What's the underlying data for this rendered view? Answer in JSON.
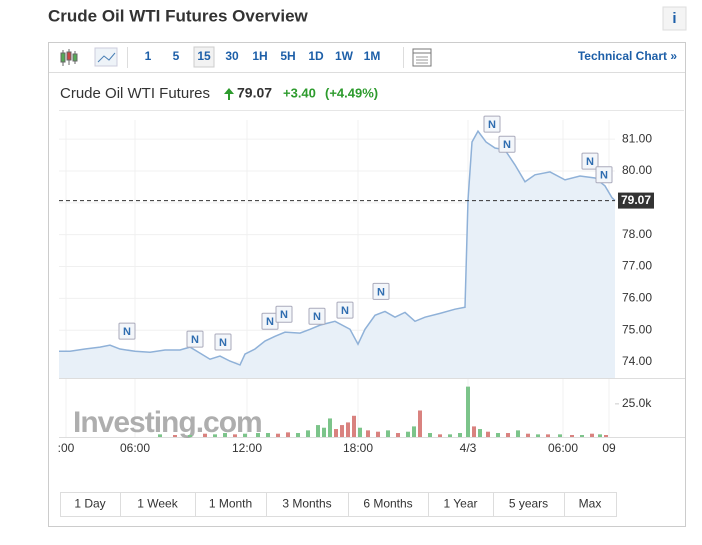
{
  "header": {
    "title": "Crude Oil WTI Futures Overview",
    "info": "i"
  },
  "toolbar": {
    "intervals": [
      "1",
      "5",
      "15",
      "30",
      "1H",
      "5H",
      "1D",
      "1W",
      "1M"
    ],
    "selected": "15",
    "technical_chart": "Technical Chart »"
  },
  "quote": {
    "name": "Crude Oil WTI Futures",
    "price": "79.07",
    "change": "+3.40",
    "change_pct": "(+4.49%)"
  },
  "chart_data": {
    "type": "area",
    "watermark": "Investing.com",
    "xlim": [
      0,
      556
    ],
    "xticks": [
      {
        "value": 7,
        "label": ":00"
      },
      {
        "value": 76,
        "label": "06:00"
      },
      {
        "value": 188,
        "label": "12:00"
      },
      {
        "value": 299,
        "label": "18:00"
      },
      {
        "value": 409,
        "label": "4/3"
      },
      {
        "value": 504,
        "label": "06:00"
      },
      {
        "value": 550,
        "label": "09"
      }
    ],
    "ylim": [
      73.5,
      81.6
    ],
    "yticks": [
      {
        "value": 74,
        "label": "74.00"
      },
      {
        "value": 75,
        "label": "75.00"
      },
      {
        "value": 76,
        "label": "76.00"
      },
      {
        "value": 77,
        "label": "77.00"
      },
      {
        "value": 78,
        "label": "78.00"
      },
      {
        "value": 79,
        "label": "79.00"
      },
      {
        "value": 80,
        "label": "80.00"
      },
      {
        "value": 81,
        "label": "81.00"
      }
    ],
    "last": 79.07,
    "price": {
      "color": "#8fb1d8",
      "fill": "#e8f0f8",
      "x": [
        0,
        11,
        26,
        41,
        51,
        61,
        76,
        91,
        106,
        121,
        131,
        141,
        151,
        161,
        171,
        181,
        186,
        196,
        206,
        216,
        226,
        241,
        251,
        261,
        276,
        291,
        299,
        306,
        316,
        326,
        336,
        346,
        356,
        366,
        381,
        396,
        406,
        409,
        413,
        419,
        427,
        436,
        446,
        456,
        466,
        476,
        491,
        506,
        521,
        536,
        546,
        553,
        556
      ],
      "values": [
        74.34,
        74.34,
        74.41,
        74.47,
        74.53,
        74.41,
        74.34,
        74.31,
        74.38,
        74.38,
        74.47,
        74.28,
        74.09,
        74.19,
        74.03,
        73.91,
        74.25,
        74.41,
        74.66,
        74.81,
        74.94,
        74.91,
        75.03,
        75.16,
        75.28,
        75.03,
        74.56,
        75.03,
        75.47,
        75.59,
        75.41,
        75.56,
        75.28,
        75.41,
        75.53,
        75.66,
        75.72,
        79.09,
        80.91,
        81.25,
        80.91,
        80.72,
        80.66,
        80.19,
        79.66,
        79.88,
        79.97,
        79.72,
        79.84,
        79.78,
        79.53,
        79.16,
        79.07
      ]
    },
    "annotations": [
      {
        "text": "N",
        "x": 68,
        "y": 74.97
      },
      {
        "text": "N",
        "x": 136,
        "y": 74.72
      },
      {
        "text": "N",
        "x": 164,
        "y": 74.63
      },
      {
        "text": "N",
        "x": 211,
        "y": 75.28
      },
      {
        "text": "N",
        "x": 225,
        "y": 75.5
      },
      {
        "text": "N",
        "x": 258,
        "y": 75.44
      },
      {
        "text": "N",
        "x": 286,
        "y": 75.63
      },
      {
        "text": "N",
        "x": 322,
        "y": 76.22
      },
      {
        "text": "N",
        "x": 433,
        "y": 81.47
      },
      {
        "text": "N",
        "x": 448,
        "y": 80.84
      },
      {
        "text": "N",
        "x": 531,
        "y": 80.31
      },
      {
        "text": "N",
        "x": 545,
        "y": 79.88
      }
    ],
    "y2lim": [
      0,
      43000
    ],
    "y2ticks": [
      {
        "value": 25000,
        "label": "25.0k"
      }
    ],
    "volume": {
      "axis": "y2",
      "x": [
        101,
        116,
        131,
        146,
        156,
        166,
        176,
        186,
        199,
        209,
        219,
        229,
        239,
        249,
        259,
        265,
        271,
        277,
        283,
        289,
        295,
        301,
        309,
        319,
        329,
        339,
        349,
        355,
        361,
        371,
        381,
        391,
        401,
        409,
        415,
        421,
        429,
        439,
        449,
        459,
        469,
        479,
        489,
        501,
        513,
        523,
        533,
        541,
        547
      ],
      "values": [
        2000,
        1500,
        1500,
        2500,
        2000,
        3000,
        2000,
        2500,
        3000,
        3000,
        2500,
        3500,
        3000,
        5000,
        9000,
        7000,
        14000,
        6000,
        9000,
        11000,
        16000,
        7000,
        5000,
        4000,
        5000,
        3000,
        4000,
        8000,
        20000,
        3000,
        2000,
        2000,
        3000,
        38000,
        8000,
        6000,
        4000,
        3000,
        3000,
        5000,
        2500,
        2000,
        2000,
        2000,
        1500,
        1500,
        2500,
        2000,
        1500
      ],
      "colors": [
        "#7cc48a",
        "#d9827f",
        "#7cc48a",
        "#d9827f",
        "#7cc48a",
        "#7cc48a",
        "#d9827f",
        "#7cc48a",
        "#7cc48a",
        "#7cc48a",
        "#d9827f",
        "#d9827f",
        "#7cc48a",
        "#7cc48a",
        "#7cc48a",
        "#7cc48a",
        "#7cc48a",
        "#d9827f",
        "#d9827f",
        "#d9827f",
        "#d9827f",
        "#7cc48a",
        "#d9827f",
        "#d9827f",
        "#7cc48a",
        "#d9827f",
        "#7cc48a",
        "#7cc48a",
        "#d9827f",
        "#7cc48a",
        "#d9827f",
        "#7cc48a",
        "#7cc48a",
        "#7cc48a",
        "#d9827f",
        "#7cc48a",
        "#d9827f",
        "#7cc48a",
        "#d9827f",
        "#7cc48a",
        "#d9827f",
        "#7cc48a",
        "#d9827f",
        "#7cc48a",
        "#d9827f",
        "#7cc48a",
        "#d9827f",
        "#7cc48a",
        "#d9827f"
      ]
    }
  },
  "ranges": [
    "1 Day",
    "1 Week",
    "1 Month",
    "3 Months",
    "6 Months",
    "1 Year",
    "5 years",
    "Max"
  ]
}
